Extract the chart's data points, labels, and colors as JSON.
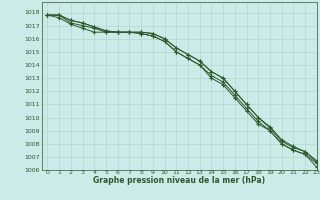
{
  "title": "Graphe pression niveau de la mer (hPa)",
  "background_color": "#cceae7",
  "grid_color": "#b0d8cc",
  "line_color": "#2d5a2d",
  "xlim": [
    -0.5,
    23
  ],
  "ylim": [
    1006,
    1018.8
  ],
  "yticks": [
    1006,
    1007,
    1008,
    1009,
    1010,
    1011,
    1012,
    1013,
    1014,
    1015,
    1016,
    1017,
    1018
  ],
  "xticks": [
    0,
    1,
    2,
    3,
    4,
    5,
    6,
    7,
    8,
    9,
    10,
    11,
    12,
    13,
    14,
    15,
    16,
    17,
    18,
    19,
    20,
    21,
    22,
    23
  ],
  "series": [
    [
      1017.8,
      1017.8,
      1017.2,
      1017.0,
      1016.8,
      1016.5,
      1016.5,
      1016.5,
      1016.4,
      1016.2,
      1015.8,
      1015.0,
      1014.5,
      1014.0,
      1013.0,
      1012.5,
      1011.5,
      1010.5,
      1009.5,
      1009.0,
      1008.0,
      1007.5,
      1007.2,
      1006.2
    ],
    [
      1017.8,
      1017.8,
      1017.4,
      1017.2,
      1016.9,
      1016.6,
      1016.5,
      1016.5,
      1016.5,
      1016.4,
      1016.0,
      1015.3,
      1014.8,
      1014.3,
      1013.5,
      1013.0,
      1012.0,
      1011.0,
      1010.0,
      1009.2,
      1008.2,
      1007.7,
      1007.4,
      1006.6
    ],
    [
      1017.8,
      1017.8,
      1017.4,
      1017.2,
      1016.9,
      1016.6,
      1016.5,
      1016.5,
      1016.5,
      1016.4,
      1016.0,
      1015.3,
      1014.8,
      1014.3,
      1013.5,
      1013.0,
      1012.0,
      1011.0,
      1010.0,
      1009.3,
      1008.3,
      1007.8,
      1007.4,
      1006.7
    ],
    [
      1017.8,
      1017.6,
      1017.1,
      1016.8,
      1016.5,
      1016.5,
      1016.5,
      1016.5,
      1016.4,
      1016.2,
      1015.8,
      1015.0,
      1014.5,
      1014.0,
      1013.2,
      1012.7,
      1011.7,
      1010.7,
      1009.7,
      1009.0,
      1008.0,
      1007.5,
      1007.2,
      1006.5
    ]
  ]
}
